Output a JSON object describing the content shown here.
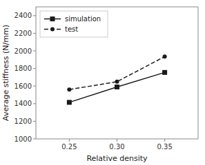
{
  "chart_data": {
    "type": "line",
    "xlabel": "Relative density",
    "ylabel": "Average stiffness (N/mm)",
    "x": [
      0.25,
      0.3,
      0.35
    ],
    "series": [
      {
        "name": "simulation",
        "color": "#1a1a1a",
        "marker": "square",
        "line_style": "solid",
        "values": [
          1415,
          1590,
          1755
        ]
      },
      {
        "name": "test",
        "color": "#1a1a1a",
        "marker": "circle",
        "line_style": "dashed",
        "values": [
          1560,
          1650,
          1935
        ]
      }
    ],
    "xlim": [
      0.215,
      0.385
    ],
    "ylim": [
      1000,
      2500
    ],
    "xticks": [
      0.25,
      {
        "value": 0.3,
        "label": "0.30"
      },
      0.35
    ],
    "yticks": [
      1000,
      1200,
      1400,
      1600,
      1800,
      2000,
      2200,
      2400
    ],
    "grid": false,
    "legend": "upper left"
  }
}
